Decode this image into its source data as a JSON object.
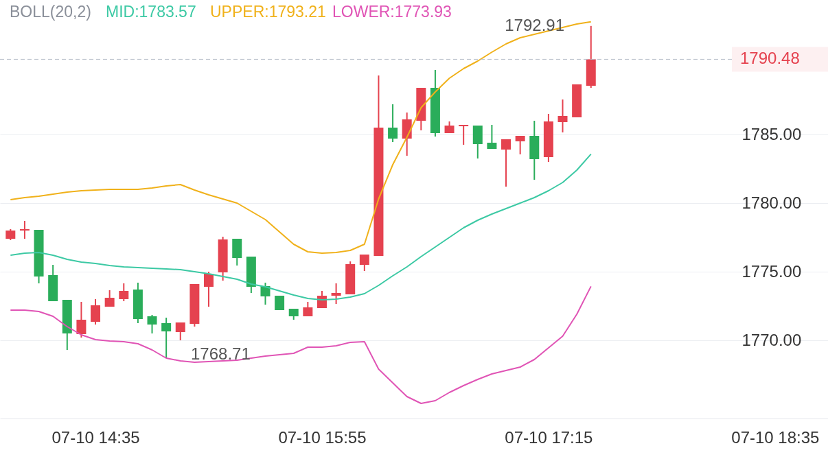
{
  "chart_data": {
    "type": "candlestick",
    "title": "BOLL(20,2)",
    "legend": "top",
    "grid": "y",
    "categories": [
      null,
      null,
      null,
      null,
      null,
      null,
      "07-10 14:35",
      null,
      null,
      null,
      null,
      null,
      null,
      null,
      null,
      null,
      null,
      null,
      null,
      null,
      null,
      null,
      "07-10 15:55",
      null,
      null,
      null,
      null,
      null,
      null,
      null,
      null,
      null,
      null,
      null,
      null,
      null,
      null,
      null,
      "07-10 17:15",
      null,
      null,
      null,
      null,
      null,
      null,
      null,
      null,
      null,
      null,
      null,
      null,
      null,
      null,
      null,
      "07-10 18:35"
    ],
    "ohlc": [
      [
        1777.4,
        1778.1,
        1777.3,
        1778.0
      ],
      [
        1778.0,
        1778.7,
        1777.4,
        1778.1
      ],
      [
        1778.05,
        1778.05,
        1774.15,
        1774.65
      ],
      [
        1774.75,
        1775.5,
        1772.85,
        1772.85
      ],
      [
        1772.95,
        1772.95,
        1769.3,
        1770.5
      ],
      [
        1770.45,
        1772.8,
        1770.2,
        1771.5
      ],
      [
        1771.35,
        1773.0,
        1771.15,
        1772.55
      ],
      [
        1772.45,
        1773.65,
        1772.45,
        1773.1
      ],
      [
        1773.0,
        1774.15,
        1772.85,
        1773.6
      ],
      [
        1773.7,
        1774.2,
        1771.25,
        1771.55
      ],
      [
        1771.75,
        1771.85,
        1770.5,
        1771.15
      ],
      [
        1771.25,
        1771.65,
        1768.71,
        1770.65
      ],
      [
        1770.6,
        1771.3,
        1770.0,
        1771.3
      ],
      [
        1771.2,
        1774.1,
        1771.0,
        1774.1
      ],
      [
        1773.9,
        1775.0,
        1772.45,
        1774.85
      ],
      [
        1774.95,
        1777.55,
        1774.35,
        1777.35
      ],
      [
        1777.4,
        1777.4,
        1775.45,
        1776.0
      ],
      [
        1776.1,
        1776.1,
        1773.45,
        1773.9
      ],
      [
        1773.95,
        1774.2,
        1772.6,
        1773.2
      ],
      [
        1773.25,
        1773.25,
        1772.2,
        1772.2
      ],
      [
        1772.3,
        1772.3,
        1771.5,
        1771.75
      ],
      [
        1771.75,
        1772.8,
        1771.75,
        1772.4
      ],
      [
        1772.35,
        1773.6,
        1772.35,
        1773.25
      ],
      [
        1773.25,
        1774.15,
        1772.65,
        1773.45
      ],
      [
        1773.35,
        1775.75,
        1773.35,
        1775.55
      ],
      [
        1775.5,
        1776.25,
        1775.05,
        1776.25
      ],
      [
        1776.15,
        1789.3,
        1776.15,
        1785.5
      ],
      [
        1785.5,
        1787.2,
        1784.45,
        1784.7
      ],
      [
        1784.7,
        1786.6,
        1783.45,
        1786.1
      ],
      [
        1786.0,
        1788.4,
        1785.3,
        1788.4
      ],
      [
        1788.4,
        1789.7,
        1784.85,
        1785.1
      ],
      [
        1785.1,
        1785.95,
        1785.1,
        1785.65
      ],
      [
        1785.6,
        1785.7,
        1784.25,
        1785.7
      ],
      [
        1785.65,
        1785.65,
        1783.25,
        1784.3
      ],
      [
        1784.4,
        1785.7,
        1783.95,
        1783.95
      ],
      [
        1783.9,
        1784.65,
        1781.2,
        1784.65
      ],
      [
        1784.5,
        1784.9,
        1783.55,
        1784.9
      ],
      [
        1784.9,
        1786.0,
        1781.7,
        1783.2
      ],
      [
        1783.35,
        1786.5,
        1783.0,
        1785.95
      ],
      [
        1785.9,
        1787.55,
        1785.15,
        1786.35
      ],
      [
        1786.25,
        1788.65,
        1786.25,
        1788.65
      ],
      [
        1788.55,
        1792.91,
        1788.4,
        1790.48
      ],
      null,
      null,
      null,
      null,
      null,
      null,
      null,
      null,
      null,
      null,
      null,
      null,
      null
    ],
    "colors": [
      "#e5424f",
      "#e5424f",
      "#2aad5a",
      "#2aad5a",
      "#2aad5a",
      "#e5424f",
      "#e5424f",
      "#e5424f",
      "#e5424f",
      "#2aad5a",
      "#2aad5a",
      "#2aad5a",
      "#e5424f",
      "#e5424f",
      "#e5424f",
      "#e5424f",
      "#2aad5a",
      "#2aad5a",
      "#2aad5a",
      "#2aad5a",
      "#2aad5a",
      "#e5424f",
      "#e5424f",
      "#e5424f",
      "#e5424f",
      "#e5424f",
      "#e5424f",
      "#2aad5a",
      "#e5424f",
      "#e5424f",
      "#2aad5a",
      "#e5424f",
      "#e5424f",
      "#2aad5a",
      "#2aad5a",
      "#e5424f",
      "#e5424f",
      "#2aad5a",
      "#e5424f",
      "#e5424f",
      "#e5424f",
      "#e5424f",
      null,
      null,
      null,
      null,
      null,
      null,
      null,
      null,
      null,
      null,
      null,
      null,
      null
    ],
    "series": [
      {
        "type": "line",
        "name": "MID:1783.57",
        "color": "#3cc9a4",
        "values": [
          1776.2,
          1776.35,
          1776.4,
          1776.2,
          1775.9,
          1775.7,
          1775.6,
          1775.45,
          1775.35,
          1775.3,
          1775.25,
          1775.2,
          1775.15,
          1775.0,
          1774.85,
          1774.65,
          1774.45,
          1774.1,
          1773.9,
          1773.6,
          1773.3,
          1773.05,
          1772.95,
          1773.0,
          1773.15,
          1773.4,
          1774.0,
          1774.7,
          1775.35,
          1776.1,
          1776.8,
          1777.5,
          1778.2,
          1778.75,
          1779.2,
          1779.6,
          1780.0,
          1780.4,
          1780.9,
          1781.5,
          1782.4,
          1783.57,
          null,
          null,
          null,
          null,
          null,
          null,
          null,
          null,
          null,
          null,
          null,
          null,
          null
        ]
      },
      {
        "type": "line",
        "name": "UPPER:1793.21",
        "color": "#f0b11a",
        "values": [
          1780.25,
          1780.4,
          1780.5,
          1780.65,
          1780.8,
          1780.9,
          1780.95,
          1781.0,
          1781.0,
          1781.0,
          1781.1,
          1781.25,
          1781.35,
          1780.95,
          1780.6,
          1780.3,
          1780.0,
          1779.4,
          1778.8,
          1777.9,
          1777.0,
          1776.45,
          1776.35,
          1776.4,
          1776.55,
          1777.0,
          1780.3,
          1782.8,
          1784.8,
          1786.95,
          1788.1,
          1789.1,
          1789.8,
          1790.35,
          1791.0,
          1791.6,
          1792.05,
          1792.3,
          1792.55,
          1792.8,
          1793.05,
          1793.21,
          null,
          null,
          null,
          null,
          null,
          null,
          null,
          null,
          null,
          null,
          null,
          null,
          null
        ]
      },
      {
        "type": "line",
        "name": "LOWER:1773.93",
        "color": "#e054b5",
        "values": [
          1772.2,
          1772.2,
          1772.1,
          1771.75,
          1771.0,
          1770.4,
          1770.05,
          1769.95,
          1769.9,
          1769.75,
          1769.3,
          1768.7,
          1768.5,
          1768.4,
          1768.45,
          1768.5,
          1768.55,
          1768.7,
          1768.85,
          1768.95,
          1769.05,
          1769.5,
          1769.5,
          1769.6,
          1769.85,
          1769.9,
          1767.9,
          1766.9,
          1765.9,
          1765.4,
          1765.6,
          1766.2,
          1766.7,
          1767.15,
          1767.55,
          1767.8,
          1768.05,
          1768.6,
          1769.45,
          1770.3,
          1771.9,
          1773.93,
          null,
          null,
          null,
          null,
          null,
          null,
          null,
          null,
          null,
          null,
          null,
          null,
          null
        ]
      }
    ],
    "ylim": [
      1764.3,
      1794.8
    ],
    "yticks": [
      {
        "value": 1770,
        "label": "1770.00"
      },
      {
        "value": 1775,
        "label": "1775.00"
      },
      {
        "value": 1780,
        "label": "1780.00"
      },
      {
        "value": 1785,
        "label": "1785.00"
      }
    ],
    "ref_lines": [
      {
        "axis": "y",
        "value": 1790.48,
        "label": "1790.48",
        "color": "#b4bcc8",
        "line_style": "dashed"
      }
    ],
    "annotations": [
      "1792.91",
      "1768.71"
    ]
  }
}
